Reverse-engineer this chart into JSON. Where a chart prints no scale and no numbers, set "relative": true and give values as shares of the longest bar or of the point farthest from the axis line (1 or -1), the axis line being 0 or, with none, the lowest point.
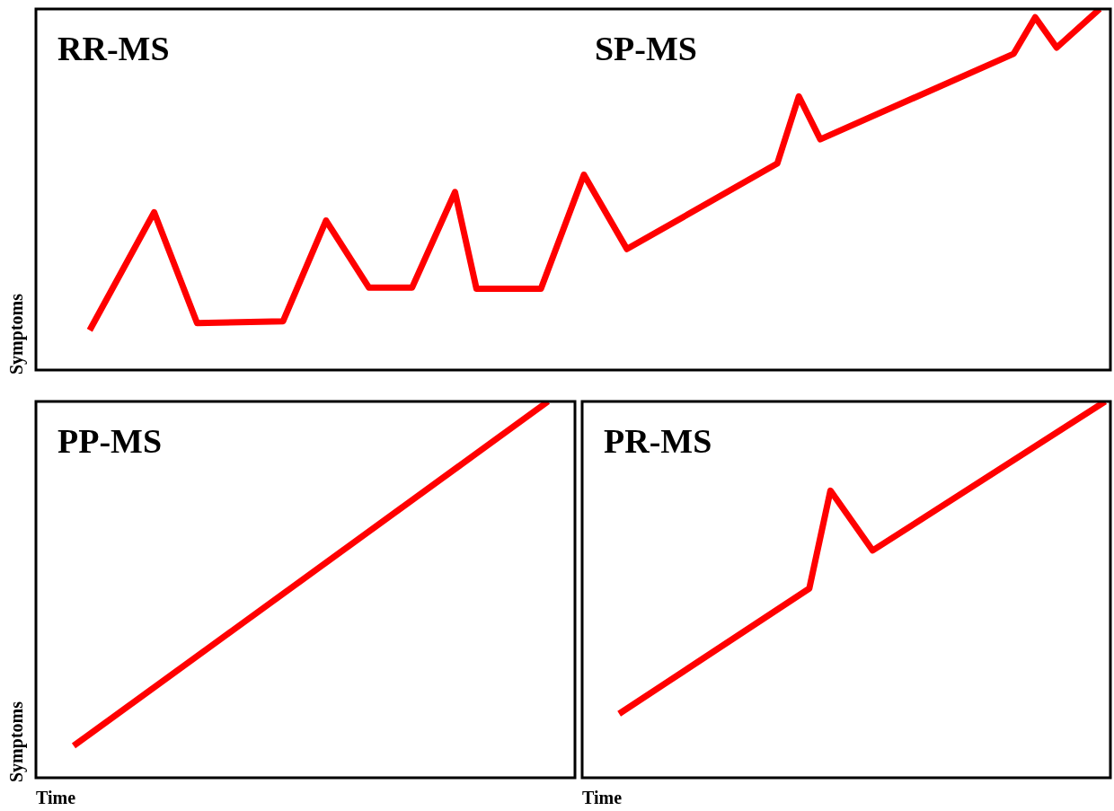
{
  "chart_data": [
    {
      "type": "line",
      "title": "RR-MS",
      "annotations": [
        "SP-MS"
      ],
      "ylabel": "Symptoms",
      "relative": true,
      "marker": "none",
      "line_style": "solid",
      "categories": [
        null,
        null,
        null,
        null,
        null,
        null,
        null,
        null,
        null,
        null,
        null,
        null,
        null,
        null,
        null,
        null,
        null,
        null,
        null,
        null,
        null,
        null,
        null,
        null,
        null,
        null,
        null,
        null,
        null,
        null,
        null,
        null,
        null,
        null,
        null,
        null,
        null,
        null,
        null,
        null,
        null,
        null,
        null,
        null,
        null,
        null,
        null,
        null,
        null,
        null
      ],
      "series": [
        {
          "color": "#ff0000",
          "values": [
            null,
            null,
            0.11,
            null,
            null,
            0.437,
            null,
            0.13,
            null,
            null,
            null,
            0.135,
            null,
            0.414,
            null,
            0.228,
            null,
            0.228,
            null,
            0.493,
            0.225,
            null,
            null,
            0.225,
            null,
            0.541,
            null,
            0.335,
            null,
            null,
            null,
            null,
            null,
            null,
            0.572,
            0.758,
            0.639,
            null,
            null,
            null,
            null,
            null,
            null,
            null,
            null,
            0.876,
            0.977,
            0.893,
            null,
            1
          ]
        }
      ]
    },
    {
      "type": "line",
      "title": "PP-MS",
      "ylabel": "Symptoms",
      "xlabel": "Time",
      "relative": true,
      "marker": "none",
      "line_style": "solid",
      "categories": [
        null,
        null,
        null,
        null,
        null,
        null,
        null,
        null,
        null,
        null,
        null,
        null,
        null,
        null,
        null,
        null,
        null,
        null,
        null,
        null,
        null,
        null,
        null,
        null,
        null,
        null,
        null,
        null,
        null,
        null,
        null,
        null,
        null,
        null,
        null,
        null,
        null,
        null,
        null,
        null,
        null,
        null,
        null,
        null,
        null,
        null,
        null,
        null,
        null,
        null
      ],
      "series": [
        {
          "color": "#ff0000",
          "values": [
            null,
            null,
            null,
            0.085,
            null,
            null,
            null,
            null,
            null,
            null,
            null,
            null,
            null,
            null,
            null,
            null,
            null,
            null,
            null,
            null,
            null,
            null,
            null,
            null,
            null,
            null,
            null,
            null,
            null,
            null,
            null,
            null,
            null,
            null,
            null,
            null,
            null,
            null,
            null,
            null,
            null,
            null,
            null,
            null,
            null,
            null,
            null,
            1,
            null,
            null
          ]
        }
      ]
    },
    {
      "type": "line",
      "title": "PR-MS",
      "xlabel": "Time",
      "relative": true,
      "marker": "none",
      "line_style": "solid",
      "categories": [
        null,
        null,
        null,
        null,
        null,
        null,
        null,
        null,
        null,
        null,
        null,
        null,
        null,
        null,
        null,
        null,
        null,
        null,
        null,
        null,
        null,
        null,
        null,
        null,
        null,
        null,
        null,
        null,
        null,
        null,
        null,
        null,
        null,
        null,
        null,
        null,
        null,
        null,
        null,
        null,
        null,
        null,
        null,
        null,
        null,
        null,
        null,
        null,
        null,
        null
      ],
      "series": [
        {
          "color": "#ff0000",
          "values": [
            null,
            null,
            null,
            0.17,
            null,
            null,
            null,
            null,
            null,
            null,
            null,
            null,
            null,
            null,
            null,
            null,
            null,
            null,
            null,
            null,
            null,
            0.503,
            null,
            0.763,
            null,
            null,
            null,
            0.604,
            null,
            null,
            null,
            null,
            null,
            null,
            null,
            null,
            null,
            null,
            null,
            null,
            null,
            null,
            null,
            null,
            null,
            null,
            null,
            null,
            null,
            1
          ]
        }
      ]
    }
  ]
}
